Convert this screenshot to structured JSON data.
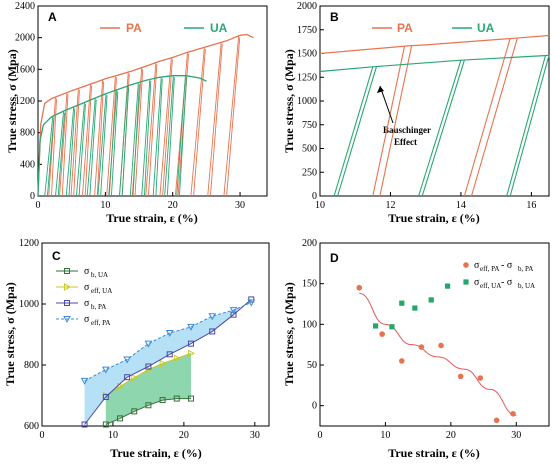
{
  "colors": {
    "pa": "#e8744f",
    "ua": "#2aa874",
    "sigma_b_ua": "#3a6e3a",
    "sigma_eff_ua": "#c9c927",
    "sigma_b_pa": "#4a4aa6",
    "sigma_eff_pa": "#3a8ad6",
    "fill_ua": "#5ec48a",
    "fill_pa": "#8fd0ef",
    "dpa": "#e8744f",
    "dua": "#22a868",
    "fit": "#e55a5a"
  },
  "chart_data": [
    {
      "panel": "A",
      "type": "line",
      "xlabel": "True strain, ε (%)",
      "ylabel": "True stress, σ (Mpa)",
      "xlim": [
        0,
        34
      ],
      "ylim": [
        0,
        2400
      ],
      "xticks": [
        "0",
        "10",
        "20",
        "30"
      ],
      "yticks": [
        "0",
        "400",
        "800",
        "1200",
        "1600",
        "2000",
        "2400"
      ],
      "legend_position": "top",
      "series": [
        {
          "name": "PA",
          "envelope": [
            [
              0,
              0
            ],
            [
              0.4,
              900
            ],
            [
              1,
              1170
            ],
            [
              2,
              1230
            ],
            [
              5,
              1330
            ],
            [
              8,
              1420
            ],
            [
              10,
              1480
            ],
            [
              12,
              1530
            ],
            [
              14,
              1580
            ],
            [
              16,
              1640
            ],
            [
              18,
              1700
            ],
            [
              20,
              1750
            ],
            [
              22,
              1810
            ],
            [
              24,
              1860
            ],
            [
              26,
              1910
            ],
            [
              28,
              1960
            ],
            [
              30,
              2030
            ],
            [
              31,
              2040
            ],
            [
              32,
              2000
            ]
          ],
          "unload_strains": [
            2.6,
            4.3,
            6.0,
            7.8,
            9.6,
            11.5,
            13.4,
            15.4,
            17.5,
            19.8,
            22.2,
            24.7,
            27.2,
            29.8
          ],
          "reload_strains": [
            2.0,
            3.6,
            5.3,
            7.0,
            8.8,
            10.6,
            12.5,
            14.4,
            16.4,
            18.5,
            20.8,
            23.1,
            25.6,
            28.0
          ]
        },
        {
          "name": "UA",
          "envelope": [
            [
              0,
              0
            ],
            [
              0.3,
              700
            ],
            [
              0.8,
              900
            ],
            [
              2,
              1000
            ],
            [
              4,
              1080
            ],
            [
              6,
              1150
            ],
            [
              8,
              1220
            ],
            [
              10,
              1290
            ],
            [
              12,
              1350
            ],
            [
              14,
              1410
            ],
            [
              16,
              1460
            ],
            [
              18,
              1500
            ],
            [
              20,
              1520
            ],
            [
              22,
              1520
            ],
            [
              24,
              1490
            ],
            [
              25,
              1450
            ]
          ],
          "unload_strains": [
            2.2,
            3.8,
            5.3,
            6.9,
            8.5,
            10.1,
            11.7,
            13.3,
            14.9,
            16.6,
            18.3,
            20.1,
            21.9
          ],
          "reload_strains": [
            1.4,
            3.0,
            4.6,
            6.1,
            7.7,
            9.3,
            10.9,
            12.5,
            14.1,
            15.8,
            17.5,
            19.2,
            21.0
          ]
        }
      ]
    },
    {
      "panel": "B",
      "type": "line",
      "xlabel": "True strain, ε (%)",
      "ylabel": "True stress, σ (Mpa)",
      "xlim": [
        10,
        16.5
      ],
      "ylim": [
        0,
        2000
      ],
      "xticks": [
        "10",
        "12",
        "14",
        "16"
      ],
      "yticks": [
        "0",
        "250",
        "500",
        "750",
        "1000",
        "1250",
        "1500",
        "1750",
        "2000"
      ],
      "annotation": "Bauschinger Effect",
      "legend_position": "top",
      "series": [
        {
          "name": "PA",
          "envelope": [
            [
              10,
              1500
            ],
            [
              12.5,
              1580
            ],
            [
              13,
              1590
            ],
            [
              15.5,
              1660
            ],
            [
              16.5,
              1690
            ]
          ],
          "loops": [
            [
              [
                12.4,
                1580
              ],
              [
                11.5,
                0
              ]
            ],
            [
              [
                12.6,
                1580
              ],
              [
                11.7,
                0
              ]
            ],
            [
              [
                15.4,
                1660
              ],
              [
                14.1,
                0
              ]
            ],
            [
              [
                15.6,
                1660
              ],
              [
                14.3,
                0
              ]
            ]
          ]
        },
        {
          "name": "UA",
          "envelope": [
            [
              10,
              1310
            ],
            [
              11.5,
              1360
            ],
            [
              14,
              1430
            ],
            [
              16.5,
              1480
            ]
          ],
          "loops": [
            [
              [
                11.5,
                1360
              ],
              [
                10.4,
                0
              ]
            ],
            [
              [
                11.6,
                1360
              ],
              [
                10.5,
                0
              ]
            ],
            [
              [
                14.0,
                1430
              ],
              [
                12.8,
                0
              ]
            ],
            [
              [
                14.1,
                1430
              ],
              [
                12.9,
                0
              ]
            ],
            [
              [
                16.4,
                1480
              ],
              [
                15.3,
                0
              ]
            ],
            [
              [
                16.5,
                1480
              ],
              [
                15.4,
                0
              ]
            ]
          ]
        }
      ]
    },
    {
      "panel": "C",
      "type": "line",
      "xlabel": "True strain, ε (%)",
      "ylabel": "True stress, σ (Mpa)",
      "xlim": [
        0,
        32
      ],
      "ylim": [
        600,
        1200
      ],
      "xticks": [
        "0",
        "10",
        "20",
        "30"
      ],
      "yticks": [
        "600",
        "800",
        "1000",
        "1200"
      ],
      "legend_position": "top-left",
      "series": [
        {
          "name": "σb,UA",
          "x": [
            9,
            11,
            13,
            15,
            17,
            19,
            21
          ],
          "y": [
            605,
            625,
            648,
            668,
            685,
            690,
            690
          ]
        },
        {
          "name": "σeff,UA",
          "x": [
            9,
            11,
            13,
            15,
            17,
            19,
            21
          ],
          "y": [
            700,
            730,
            758,
            785,
            805,
            822,
            838
          ]
        },
        {
          "name": "σb,PA",
          "x": [
            6,
            9,
            12,
            15,
            18,
            21,
            24,
            27,
            29.5
          ],
          "y": [
            605,
            695,
            760,
            795,
            835,
            870,
            910,
            965,
            1015
          ]
        },
        {
          "name": "σeff,PA",
          "x": [
            6,
            9,
            12,
            15,
            18,
            21,
            24,
            27,
            29.5
          ],
          "y": [
            748,
            785,
            818,
            870,
            905,
            925,
            960,
            980,
            1005
          ]
        }
      ]
    },
    {
      "panel": "D",
      "type": "scatter",
      "xlabel": "True strain, ε (%)",
      "ylabel": "True stress, σ (Mpa)",
      "xlim": [
        0,
        35
      ],
      "ylim": [
        -25,
        200
      ],
      "xticks": [
        "0",
        "10",
        "20",
        "30"
      ],
      "yticks": [
        "0",
        "50",
        "100",
        "150",
        "200"
      ],
      "legend_position": "top-right",
      "series": [
        {
          "name": "σeff,PA - σb,PA",
          "x": [
            6,
            9.5,
            12.5,
            15.5,
            18.5,
            21.5,
            24.5,
            27,
            29.5
          ],
          "y": [
            145,
            88,
            55,
            72,
            74,
            36,
            34,
            -18,
            -10
          ]
        },
        {
          "name": "σeff,UA - σb,UA",
          "x": [
            8.5,
            11,
            12.5,
            14.5,
            17,
            19.5
          ],
          "y": [
            98,
            97,
            126,
            120,
            130,
            147
          ]
        }
      ],
      "fit": {
        "x": [
          6,
          10,
          14,
          18,
          22,
          26,
          30
        ],
        "y": [
          138,
          100,
          75,
          60,
          45,
          20,
          -12
        ]
      }
    }
  ],
  "panels": {
    "A": {
      "letter": "A",
      "legend_pa": "PA",
      "legend_ua": "UA"
    },
    "B": {
      "letter": "B",
      "legend_pa": "PA",
      "legend_ua": "UA",
      "anno_line1": "Bauschinger",
      "anno_line2": "Effect"
    },
    "C": {
      "letter": "C",
      "legend": [
        {
          "main": "σ",
          "sub": "b, UA"
        },
        {
          "main": "σ",
          "sub": "eff, UA"
        },
        {
          "main": "σ",
          "sub": "b, PA"
        },
        {
          "main": "σ",
          "sub": "eff, PA"
        }
      ]
    },
    "D": {
      "letter": "D",
      "legend": [
        {
          "main": "σ",
          "sub1": "eff, PA",
          "mid": " - σ",
          "sub2": "b, PA"
        },
        {
          "main": "σ",
          "sub1": "eff, UA",
          "mid": " - σ",
          "sub2": "b, UA"
        }
      ]
    }
  },
  "axis_labels": {
    "x": "True strain, ε (%)",
    "y": "True stress, σ (Mpa)"
  }
}
